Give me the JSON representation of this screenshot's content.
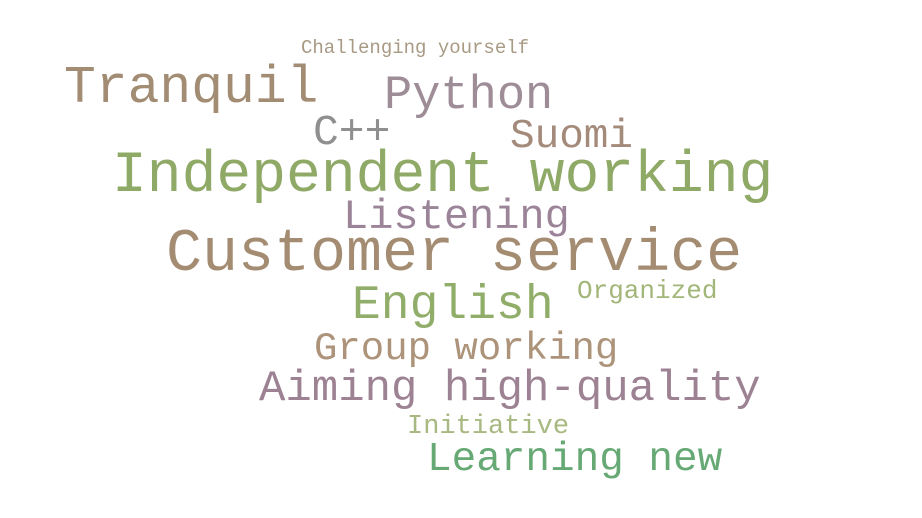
{
  "words": [
    {
      "text": "Challenging yourself",
      "color": "#a89a84"
    },
    {
      "text": "Tranquil",
      "color": "#a28c74"
    },
    {
      "text": "Python",
      "color": "#9e8c96"
    },
    {
      "text": "C++",
      "color": "#8f8f8f"
    },
    {
      "text": "Suomi",
      "color": "#a48a7a"
    },
    {
      "text": "Independent working",
      "color": "#8fa966"
    },
    {
      "text": "Listening",
      "color": "#9c8498"
    },
    {
      "text": "Customer service",
      "color": "#a48c72"
    },
    {
      "text": "English",
      "color": "#90ad69"
    },
    {
      "text": "Organized",
      "color": "#a3b67a"
    },
    {
      "text": "Group working",
      "color": "#ac9379"
    },
    {
      "text": "Aiming high-quality",
      "color": "#9c8292"
    },
    {
      "text": "Initiative",
      "color": "#a7b880"
    },
    {
      "text": "Learning new",
      "color": "#66a974"
    }
  ]
}
